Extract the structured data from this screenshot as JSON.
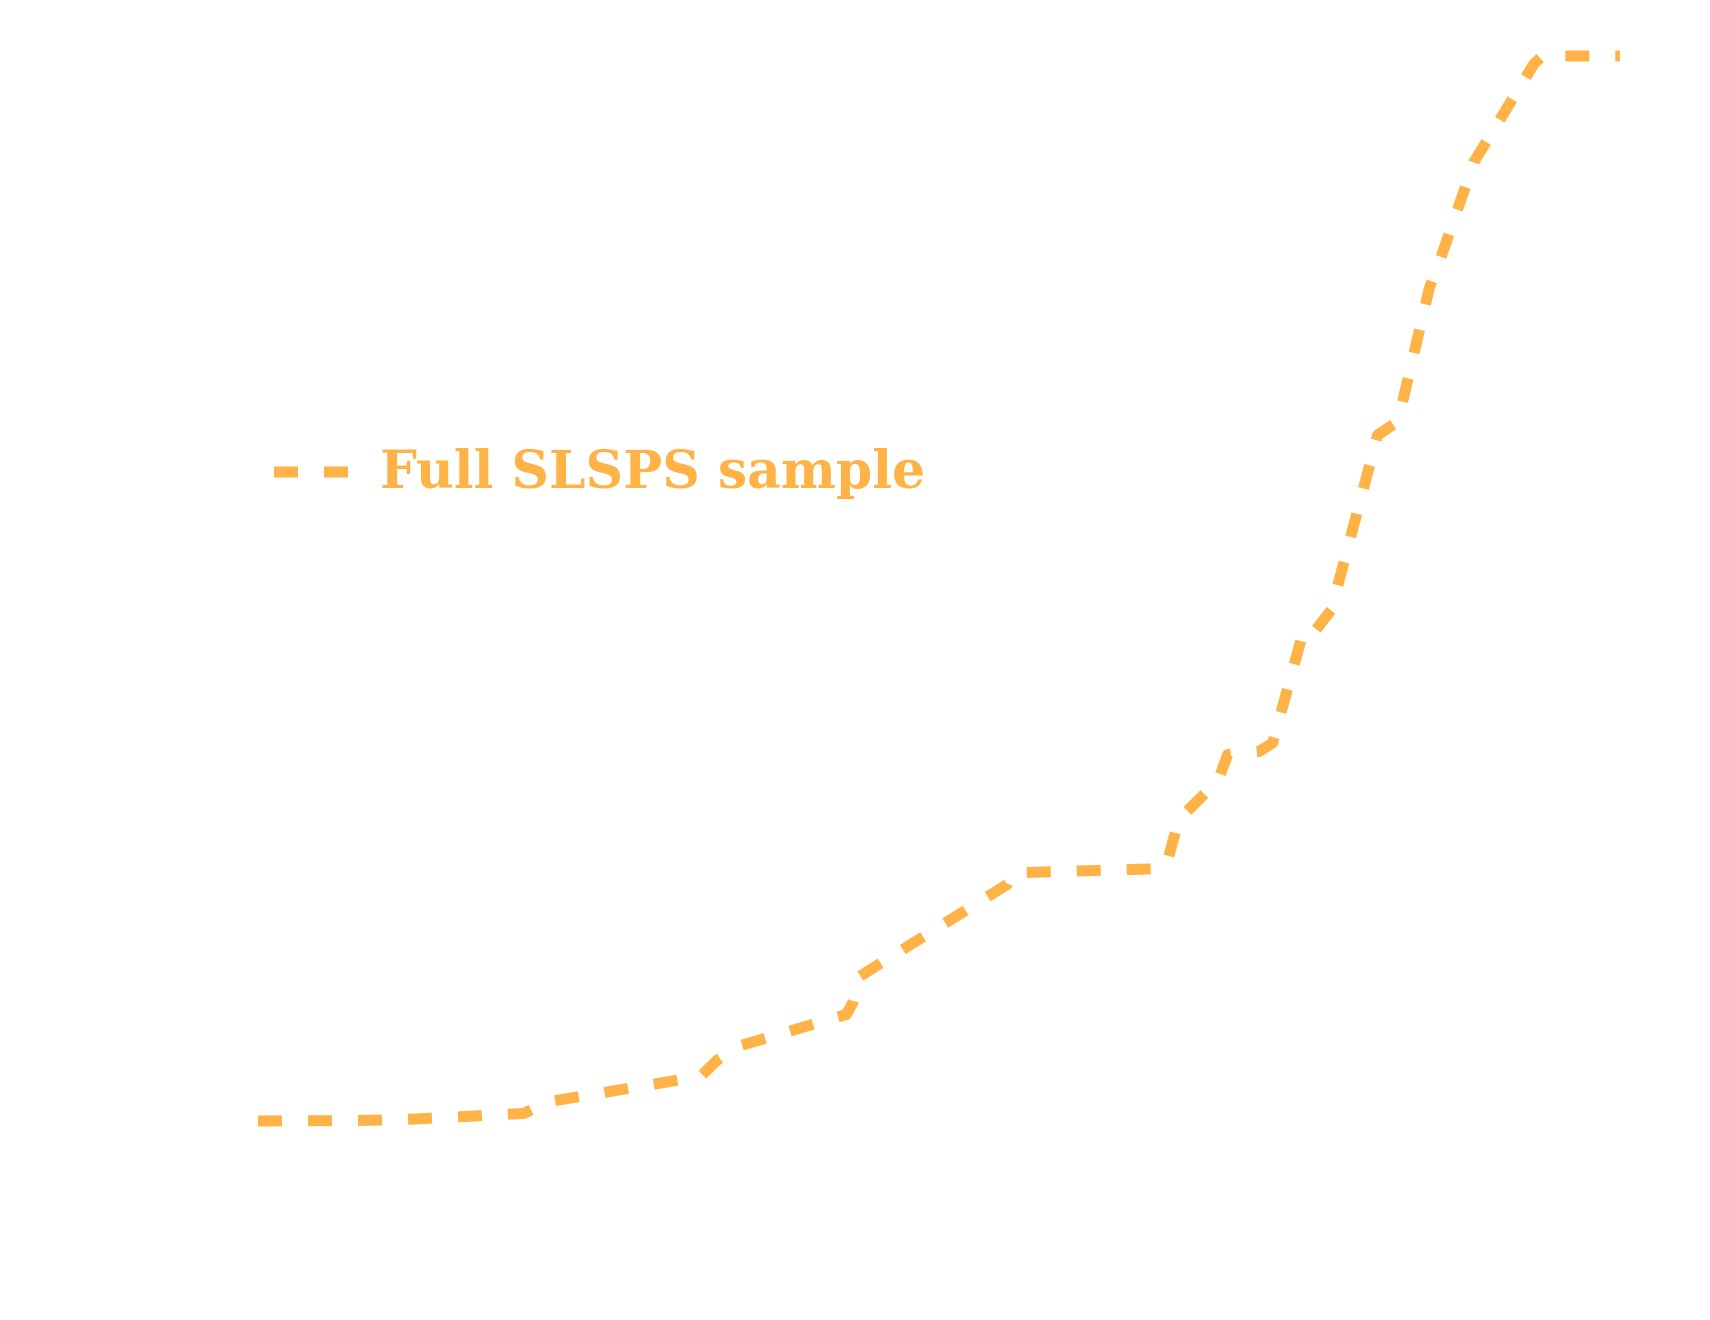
{
  "chart_data": {
    "type": "line",
    "title": "",
    "xlabel": "",
    "ylabel": "",
    "xlim": [
      0,
      1
    ],
    "ylim": [
      0,
      1
    ],
    "grid": false,
    "axes_visible": false,
    "legend_position": "center-left",
    "series": [
      {
        "name": "Full SLSPS sample",
        "color": "#ffb347",
        "line_style": "dashed",
        "x": [
          0,
          0.073,
          0.11,
          0.195,
          0.213,
          0.325,
          0.337,
          0.352,
          0.432,
          0.437,
          0.442,
          0.457,
          0.55,
          0.554,
          0.664,
          0.668,
          0.676,
          0.705,
          0.712,
          0.735,
          0.745,
          0.768,
          0.776,
          0.788,
          0.822,
          0.837,
          0.86,
          0.868,
          0.893,
          0.937,
          0.943,
          0.951,
          1
        ],
        "y": [
          0,
          0.0005,
          0.0015,
          0.007,
          0.018,
          0.042,
          0.057,
          0.07,
          0.1,
          0.112,
          0.136,
          0.148,
          0.222,
          0.233,
          0.237,
          0.245,
          0.283,
          0.32,
          0.344,
          0.347,
          0.355,
          0.462,
          0.46,
          0.48,
          0.644,
          0.657,
          0.782,
          0.809,
          0.901,
          0.993,
          1,
          1,
          1
        ]
      }
    ]
  }
}
